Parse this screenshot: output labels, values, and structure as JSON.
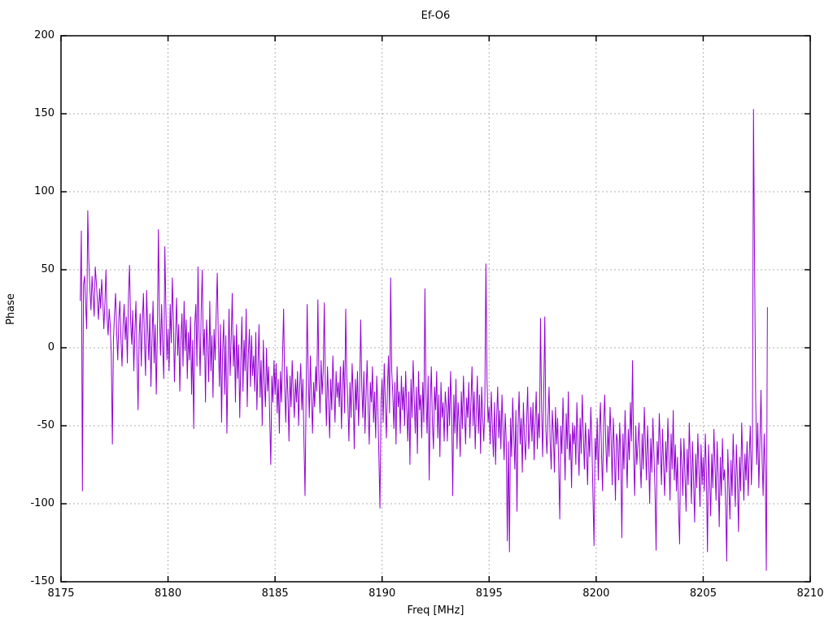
{
  "window": {
    "title": "Ef-O6"
  },
  "chart_data": {
    "type": "line",
    "title": "Ef-O6",
    "xlabel": "Freq [MHz]",
    "ylabel": "Phase",
    "xlim": [
      8175,
      8210
    ],
    "ylim": [
      -150,
      200
    ],
    "xticks": [
      8175,
      8180,
      8185,
      8190,
      8195,
      8200,
      8205,
      8210
    ],
    "yticks": [
      -150,
      -100,
      -50,
      0,
      50,
      100,
      150,
      200
    ],
    "grid": true,
    "legend": "none",
    "line_color": "#9400d3",
    "grid_color": "#b0b0b0",
    "border_color": "#000000",
    "background_color": "#ffffff",
    "series": [
      {
        "name": "phase",
        "x_start": 8175.9,
        "x_step": 0.05,
        "values": [
          30,
          75,
          -92,
          40,
          46,
          28,
          12,
          88,
          55,
          38,
          24,
          46,
          33,
          20,
          52,
          42,
          30,
          18,
          38,
          25,
          44,
          31,
          12,
          28,
          50,
          20,
          8,
          25,
          14,
          -5,
          -62,
          5,
          22,
          35,
          10,
          -8,
          18,
          30,
          6,
          -12,
          15,
          28,
          5,
          20,
          -10,
          32,
          53,
          18,
          2,
          24,
          -15,
          10,
          30,
          -5,
          -40,
          8,
          22,
          -12,
          16,
          35,
          4,
          -18,
          37,
          12,
          -8,
          22,
          -25,
          5,
          30,
          -10,
          15,
          -30,
          8,
          76,
          20,
          -5,
          28,
          0,
          -20,
          65,
          25,
          -8,
          12,
          -15,
          28,
          3,
          45,
          18,
          -22,
          8,
          32,
          -5,
          15,
          -28,
          5,
          22,
          -12,
          30,
          -2,
          18,
          -20,
          10,
          -8,
          20,
          -30,
          5,
          -52,
          15,
          28,
          -12,
          52,
          8,
          -18,
          25,
          50,
          -5,
          12,
          -35,
          18,
          2,
          -22,
          30,
          -15,
          8,
          -32,
          12,
          -8,
          22,
          48,
          5,
          -25,
          15,
          -48,
          -2,
          18,
          -30,
          8,
          -55,
          -12,
          25,
          -18,
          5,
          35,
          -12,
          8,
          -35,
          15,
          -20,
          2,
          -45,
          -8,
          20,
          -28,
          5,
          -15,
          25,
          -38,
          -5,
          12,
          -25,
          8,
          -18,
          -5,
          -28,
          10,
          -40,
          -12,
          15,
          -32,
          -8,
          -50,
          5,
          -22,
          -38,
          0,
          -28,
          -12,
          -45,
          -75,
          -18,
          -35,
          -8,
          -30,
          -10,
          -42,
          -20,
          -55,
          -15,
          -35,
          -5,
          25,
          -25,
          -48,
          -12,
          -30,
          -60,
          -18,
          -38,
          -8,
          -28,
          -45,
          -20,
          -35,
          -15,
          -50,
          -25,
          -10,
          -40,
          -20,
          -60,
          -95,
          -30,
          28,
          -18,
          -45,
          -5,
          -32,
          -55,
          -22,
          -38,
          -12,
          -28,
          31,
          -20,
          -42,
          -8,
          -30,
          -15,
          29,
          -25,
          -50,
          -12,
          -35,
          -58,
          -20,
          -40,
          -5,
          -28,
          -48,
          -15,
          -32,
          -22,
          -38,
          -12,
          -52,
          -25,
          -8,
          -42,
          25,
          -18,
          -35,
          -60,
          -22,
          -45,
          -10,
          -30,
          -65,
          -20,
          -40,
          -15,
          -50,
          -28,
          18,
          -25,
          -45,
          -15,
          -55,
          -30,
          -8,
          -40,
          -62,
          -22,
          -35,
          -12,
          -48,
          -28,
          -58,
          -18,
          -38,
          -70,
          -103,
          -35,
          -20,
          -48,
          -10,
          -35,
          -58,
          -25,
          -5,
          -42,
          45,
          -15,
          -30,
          -52,
          -22,
          -62,
          -12,
          -38,
          -28,
          -55,
          -18,
          -40,
          -25,
          -50,
          -15,
          -38,
          -60,
          -28,
          -75,
          -20,
          -45,
          -8,
          -32,
          -55,
          -25,
          -68,
          -15,
          -40,
          -30,
          -58,
          -22,
          -48,
          38,
          -30,
          -55,
          -18,
          -85,
          -35,
          -12,
          -48,
          -65,
          -25,
          -40,
          -15,
          -58,
          -30,
          -70,
          -22,
          -45,
          -35,
          -60,
          -28,
          -38,
          -60,
          -25,
          -50,
          -15,
          -42,
          -95,
          -30,
          -55,
          -20,
          -65,
          -35,
          -48,
          -70,
          -28,
          -52,
          -18,
          -40,
          -62,
          -32,
          -45,
          -22,
          -58,
          -35,
          -12,
          -50,
          -28,
          -65,
          -40,
          -18,
          -55,
          -30,
          -68,
          -25,
          -45,
          -60,
          -35,
          54,
          -20,
          -48,
          -38,
          -62,
          -28,
          -50,
          -70,
          -35,
          -75,
          -45,
          -25,
          -58,
          -40,
          -65,
          -30,
          -52,
          -72,
          -42,
          -60,
          -124,
          -60,
          -131,
          -45,
          -70,
          -32,
          -55,
          -78,
          -40,
          -105,
          -50,
          -28,
          -62,
          -45,
          -80,
          -35,
          -58,
          -72,
          -48,
          -25,
          -65,
          -52,
          -38,
          -60,
          -35,
          -72,
          -48,
          -28,
          -65,
          -42,
          -58,
          19,
          -38,
          -70,
          -30,
          20,
          -52,
          -68,
          -45,
          -25,
          -60,
          -78,
          -40,
          -55,
          -80,
          -38,
          -62,
          -45,
          -75,
          -110,
          -50,
          -68,
          -32,
          -58,
          -85,
          -42,
          -65,
          -28,
          -72,
          -55,
          -90,
          -48,
          -62,
          -50,
          -75,
          -35,
          -60,
          -82,
          -45,
          -68,
          -30,
          -55,
          -78,
          -48,
          -65,
          -88,
          -52,
          -70,
          -38,
          -60,
          -95,
          -127,
          -58,
          -72,
          -45,
          -85,
          -55,
          -35,
          -68,
          -92,
          -48,
          -30,
          -62,
          -80,
          -50,
          -70,
          -38,
          -58,
          -88,
          -45,
          -65,
          -98,
          -55,
          -60,
          -85,
          -48,
          -70,
          -122,
          -55,
          -78,
          -40,
          -65,
          -90,
          -52,
          -72,
          -35,
          -60,
          -8,
          -68,
          -95,
          -50,
          -75,
          -62,
          -48,
          -72,
          -90,
          -55,
          -78,
          -38,
          -62,
          -85,
          -50,
          -70,
          -100,
          -58,
          -80,
          -45,
          -68,
          -92,
          -130,
          -60,
          -75,
          -42,
          -65,
          -88,
          -52,
          -75,
          -95,
          -60,
          -80,
          -45,
          -70,
          -98,
          -55,
          -78,
          -40,
          -85,
          -62,
          -92,
          -70,
          -105,
          -126,
          -58,
          -75,
          -95,
          -58,
          -82,
          -105,
          -65,
          -88,
          -48,
          -72,
          -100,
          -60,
          -85,
          -112,
          -68,
          -90,
          -55,
          -78,
          -102,
          -62,
          -88,
          -70,
          -92,
          -55,
          -80,
          -131,
          -62,
          -85,
          -108,
          -68,
          -90,
          -52,
          -75,
          -98,
          -60,
          -82,
          -115,
          -70,
          -95,
          -58,
          -85,
          -78,
          -100,
          -137,
          -65,
          -88,
          -110,
          -72,
          -95,
          -55,
          -80,
          -102,
          -62,
          -85,
          -118,
          -70,
          -92,
          -48,
          -75,
          -98,
          -68,
          -85,
          -60,
          -95,
          -70,
          -50,
          -88,
          -65,
          153,
          55,
          -30,
          -75,
          -48,
          -90,
          -62,
          -27,
          -70,
          -95,
          -55,
          -80,
          -143,
          26
        ]
      }
    ]
  }
}
